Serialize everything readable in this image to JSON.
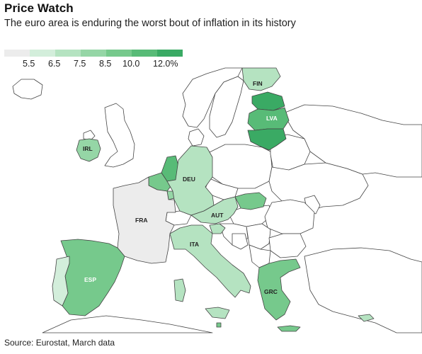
{
  "header": {
    "title": "Price Watch",
    "subtitle": "The euro area is enduring the worst bout of inflation in its history"
  },
  "legend": {
    "labels": [
      "5.5",
      "6.5",
      "7.5",
      "8.5",
      "10.0",
      "12.0%"
    ],
    "colors": [
      "#ececec",
      "#d3eedb",
      "#b5e3c1",
      "#95d6a6",
      "#76c98c",
      "#58bb77",
      "#3aaa64"
    ]
  },
  "map": {
    "labels": {
      "fin": "FIN",
      "lva": "LVA",
      "irl": "IRL",
      "deu": "DEU",
      "fra": "FRA",
      "aut": "AUT",
      "ita": "ITA",
      "esp": "ESP",
      "grc": "GRC"
    },
    "country_colors": {
      "fin": "#b5e3c1",
      "est": "#3aaa64",
      "lva": "#58bb77",
      "ltu": "#3aaa64",
      "irl": "#95d6a6",
      "nld": "#58bb77",
      "bel": "#76c98c",
      "lux": "#95d6a6",
      "deu": "#b5e3c1",
      "fra": "#ececec",
      "aut": "#b5e3c1",
      "svk": "#76c98c",
      "svn": "#b5e3c1",
      "ita": "#b5e3c1",
      "esp": "#76c98c",
      "prt": "#d3eedb",
      "grc": "#76c98c",
      "mlt": "#76c98c",
      "cyp": "#b5e3c1"
    },
    "colors": {
      "background_land": "#ffffff",
      "border": "#444444"
    }
  },
  "footer": {
    "source": "Source: Eurostat, March data"
  }
}
